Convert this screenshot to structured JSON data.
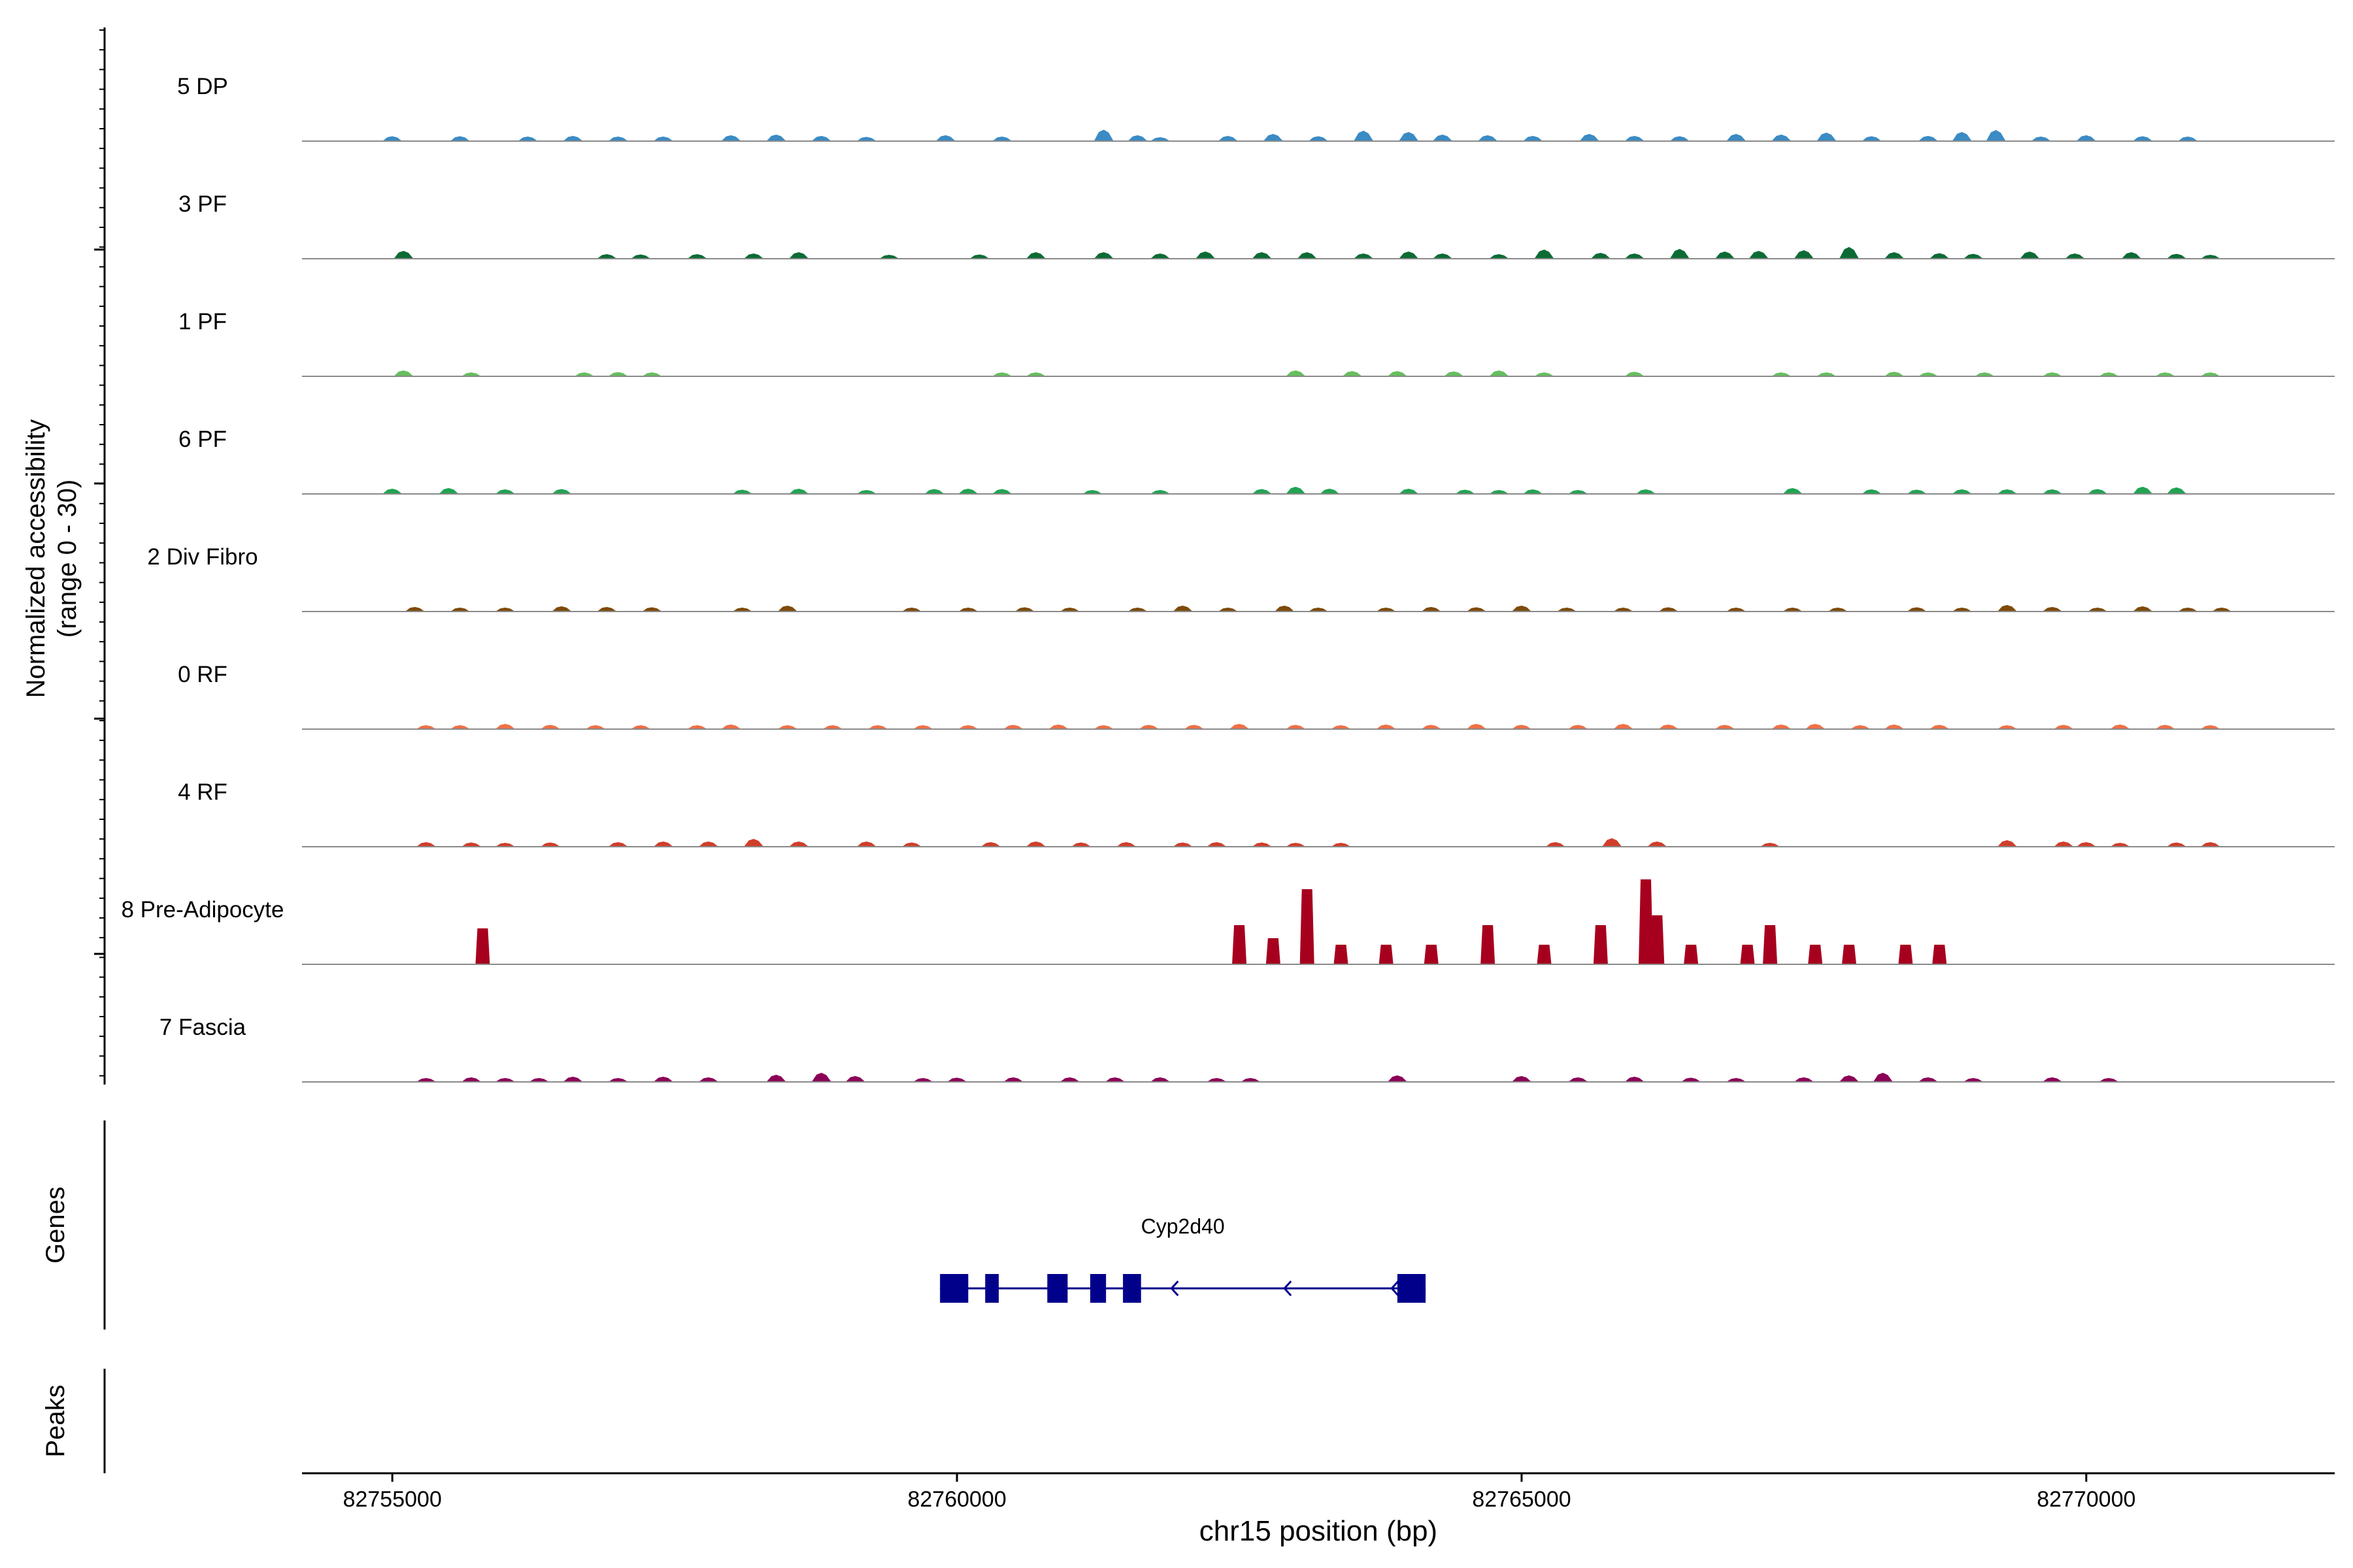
{
  "chart_data": {
    "type": "area",
    "title": "",
    "ylabel": [
      "Normalized accessibility",
      "(range 0 - 30)"
    ],
    "xlabel": "chr15 position (bp)",
    "xlim": [
      82754200,
      82772200
    ],
    "ylim": [
      0,
      30
    ],
    "xticks": [
      82755000,
      82760000,
      82765000,
      82770000
    ],
    "xtick_labels": [
      "82755000",
      "82760000",
      "82765000",
      "82770000"
    ],
    "tracks": [
      {
        "name": "5 DP",
        "color": "#3B8BC4",
        "peaks": [
          [
            82755000,
            1.5
          ],
          [
            82755600,
            1.5
          ],
          [
            82756200,
            1.4
          ],
          [
            82756600,
            1.6
          ],
          [
            82757000,
            1.4
          ],
          [
            82757400,
            1.4
          ],
          [
            82758000,
            1.8
          ],
          [
            82758400,
            2.0
          ],
          [
            82758800,
            1.6
          ],
          [
            82759200,
            1.3
          ],
          [
            82759900,
            1.8
          ],
          [
            82760400,
            1.4
          ],
          [
            82761300,
            3.5
          ],
          [
            82761600,
            1.8
          ],
          [
            82761800,
            1.2
          ],
          [
            82762400,
            1.6
          ],
          [
            82762800,
            2.2
          ],
          [
            82763200,
            1.5
          ],
          [
            82763600,
            3.2
          ],
          [
            82764000,
            2.8
          ],
          [
            82764300,
            2.0
          ],
          [
            82764700,
            1.8
          ],
          [
            82765100,
            1.6
          ],
          [
            82765600,
            2.2
          ],
          [
            82766000,
            1.6
          ],
          [
            82766400,
            1.5
          ],
          [
            82766900,
            2.2
          ],
          [
            82767300,
            2.0
          ],
          [
            82767700,
            2.6
          ],
          [
            82768100,
            1.5
          ],
          [
            82768600,
            1.6
          ],
          [
            82768900,
            2.8
          ],
          [
            82769200,
            3.4
          ],
          [
            82769600,
            1.4
          ],
          [
            82770000,
            1.8
          ],
          [
            82770500,
            1.5
          ],
          [
            82770900,
            1.4
          ]
        ]
      },
      {
        "name": "3 PF",
        "color": "#0C6B35",
        "peaks": [
          [
            82755100,
            2.4
          ],
          [
            82756900,
            1.4
          ],
          [
            82757200,
            1.3
          ],
          [
            82757700,
            1.4
          ],
          [
            82758200,
            1.6
          ],
          [
            82758600,
            2.0
          ],
          [
            82759400,
            1.2
          ],
          [
            82760200,
            1.3
          ],
          [
            82760700,
            2.0
          ],
          [
            82761300,
            2.0
          ],
          [
            82761800,
            1.6
          ],
          [
            82762200,
            2.2
          ],
          [
            82762700,
            2.0
          ],
          [
            82763100,
            2.0
          ],
          [
            82763600,
            1.6
          ],
          [
            82764000,
            2.2
          ],
          [
            82764300,
            1.6
          ],
          [
            82764800,
            1.4
          ],
          [
            82765200,
            2.8
          ],
          [
            82765700,
            1.8
          ],
          [
            82766000,
            1.6
          ],
          [
            82766400,
            3.0
          ],
          [
            82766800,
            2.2
          ],
          [
            82767100,
            2.4
          ],
          [
            82767500,
            2.6
          ],
          [
            82767900,
            3.6
          ],
          [
            82768300,
            2.0
          ],
          [
            82768700,
            1.7
          ],
          [
            82769000,
            1.5
          ],
          [
            82769500,
            2.2
          ],
          [
            82769900,
            1.6
          ],
          [
            82770400,
            2.0
          ],
          [
            82770800,
            1.5
          ],
          [
            82771100,
            1.2
          ]
        ]
      },
      {
        "name": "1 PF",
        "color": "#66BE5E",
        "peaks": [
          [
            82755100,
            1.8
          ],
          [
            82755700,
            1.2
          ],
          [
            82756700,
            1.2
          ],
          [
            82757000,
            1.3
          ],
          [
            82757300,
            1.2
          ],
          [
            82760400,
            1.2
          ],
          [
            82760700,
            1.2
          ],
          [
            82763000,
            1.8
          ],
          [
            82763500,
            1.6
          ],
          [
            82763900,
            1.6
          ],
          [
            82764400,
            1.5
          ],
          [
            82764800,
            1.8
          ],
          [
            82765200,
            1.2
          ],
          [
            82766000,
            1.4
          ],
          [
            82767300,
            1.2
          ],
          [
            82767700,
            1.2
          ],
          [
            82768300,
            1.4
          ],
          [
            82768600,
            1.2
          ],
          [
            82769100,
            1.2
          ],
          [
            82769700,
            1.2
          ],
          [
            82770200,
            1.2
          ],
          [
            82770700,
            1.2
          ],
          [
            82771100,
            1.2
          ]
        ]
      },
      {
        "name": "6 PF",
        "color": "#22A353",
        "peaks": [
          [
            82755000,
            1.6
          ],
          [
            82755500,
            1.8
          ],
          [
            82756000,
            1.4
          ],
          [
            82756500,
            1.5
          ],
          [
            82758100,
            1.3
          ],
          [
            82758600,
            1.6
          ],
          [
            82759200,
            1.2
          ],
          [
            82759800,
            1.5
          ],
          [
            82760100,
            1.6
          ],
          [
            82760400,
            1.5
          ],
          [
            82761200,
            1.2
          ],
          [
            82761800,
            1.2
          ],
          [
            82762700,
            1.5
          ],
          [
            82763000,
            2.2
          ],
          [
            82763300,
            1.6
          ],
          [
            82764000,
            1.6
          ],
          [
            82764500,
            1.3
          ],
          [
            82764800,
            1.2
          ],
          [
            82765100,
            1.4
          ],
          [
            82765500,
            1.2
          ],
          [
            82766100,
            1.4
          ],
          [
            82767400,
            1.8
          ],
          [
            82768100,
            1.4
          ],
          [
            82768500,
            1.3
          ],
          [
            82768900,
            1.4
          ],
          [
            82769300,
            1.4
          ],
          [
            82769700,
            1.4
          ],
          [
            82770100,
            1.5
          ],
          [
            82770500,
            2.2
          ],
          [
            82770800,
            2.0
          ]
        ]
      },
      {
        "name": "2 Div Fibro",
        "color": "#7F4A0A",
        "peaks": [
          [
            82755200,
            1.4
          ],
          [
            82755600,
            1.2
          ],
          [
            82756000,
            1.2
          ],
          [
            82756500,
            1.6
          ],
          [
            82756900,
            1.4
          ],
          [
            82757300,
            1.3
          ],
          [
            82758100,
            1.2
          ],
          [
            82758500,
            1.8
          ],
          [
            82759600,
            1.2
          ],
          [
            82760100,
            1.2
          ],
          [
            82760600,
            1.3
          ],
          [
            82761000,
            1.2
          ],
          [
            82761600,
            1.2
          ],
          [
            82762000,
            1.8
          ],
          [
            82762400,
            1.2
          ],
          [
            82762900,
            1.8
          ],
          [
            82763200,
            1.2
          ],
          [
            82763800,
            1.2
          ],
          [
            82764200,
            1.4
          ],
          [
            82764600,
            1.3
          ],
          [
            82765000,
            1.8
          ],
          [
            82765400,
            1.2
          ],
          [
            82765900,
            1.2
          ],
          [
            82766300,
            1.3
          ],
          [
            82766900,
            1.2
          ],
          [
            82767400,
            1.2
          ],
          [
            82767800,
            1.2
          ],
          [
            82768500,
            1.3
          ],
          [
            82768900,
            1.2
          ],
          [
            82769300,
            2.0
          ],
          [
            82769700,
            1.4
          ],
          [
            82770100,
            1.2
          ],
          [
            82770500,
            1.6
          ],
          [
            82770900,
            1.2
          ],
          [
            82771200,
            1.2
          ]
        ]
      },
      {
        "name": "0 RF",
        "color": "#EE7047",
        "peaks": [
          [
            82755300,
            1.2
          ],
          [
            82755600,
            1.2
          ],
          [
            82756000,
            1.6
          ],
          [
            82756400,
            1.3
          ],
          [
            82756800,
            1.2
          ],
          [
            82757200,
            1.2
          ],
          [
            82757700,
            1.2
          ],
          [
            82758000,
            1.4
          ],
          [
            82758500,
            1.2
          ],
          [
            82758900,
            1.2
          ],
          [
            82759300,
            1.2
          ],
          [
            82759700,
            1.2
          ],
          [
            82760100,
            1.2
          ],
          [
            82760500,
            1.3
          ],
          [
            82760900,
            1.4
          ],
          [
            82761300,
            1.2
          ],
          [
            82761700,
            1.3
          ],
          [
            82762100,
            1.3
          ],
          [
            82762500,
            1.6
          ],
          [
            82763000,
            1.3
          ],
          [
            82763400,
            1.2
          ],
          [
            82763800,
            1.4
          ],
          [
            82764200,
            1.3
          ],
          [
            82764600,
            1.6
          ],
          [
            82765000,
            1.3
          ],
          [
            82765500,
            1.3
          ],
          [
            82765900,
            1.6
          ],
          [
            82766300,
            1.4
          ],
          [
            82766800,
            1.3
          ],
          [
            82767300,
            1.4
          ],
          [
            82767600,
            1.6
          ],
          [
            82768000,
            1.2
          ],
          [
            82768300,
            1.4
          ],
          [
            82768700,
            1.3
          ],
          [
            82769300,
            1.2
          ],
          [
            82769800,
            1.3
          ],
          [
            82770300,
            1.4
          ],
          [
            82770700,
            1.3
          ],
          [
            82771100,
            1.2
          ]
        ]
      },
      {
        "name": "4 RF",
        "color": "#D03E2A",
        "peaks": [
          [
            82755300,
            1.4
          ],
          [
            82755700,
            1.3
          ],
          [
            82756000,
            1.2
          ],
          [
            82756400,
            1.3
          ],
          [
            82757000,
            1.4
          ],
          [
            82757400,
            1.6
          ],
          [
            82757800,
            1.6
          ],
          [
            82758200,
            2.4
          ],
          [
            82758600,
            1.6
          ],
          [
            82759200,
            1.6
          ],
          [
            82759600,
            1.3
          ],
          [
            82760300,
            1.4
          ],
          [
            82760700,
            1.6
          ],
          [
            82761100,
            1.3
          ],
          [
            82761500,
            1.4
          ],
          [
            82762000,
            1.3
          ],
          [
            82762300,
            1.4
          ],
          [
            82762700,
            1.3
          ],
          [
            82763000,
            1.2
          ],
          [
            82763400,
            1.2
          ],
          [
            82765300,
            1.4
          ],
          [
            82765800,
            2.6
          ],
          [
            82766200,
            1.6
          ],
          [
            82767200,
            1.2
          ],
          [
            82769300,
            2.0
          ],
          [
            82769800,
            1.6
          ],
          [
            82770000,
            1.4
          ],
          [
            82770300,
            1.2
          ],
          [
            82770800,
            1.3
          ],
          [
            82771100,
            1.4
          ]
        ]
      },
      {
        "name": "8 Pre-Adipocyte",
        "color": "#A7001F",
        "peaks": [
          [
            82755800,
            11
          ],
          [
            82762500,
            12
          ],
          [
            82762800,
            8
          ],
          [
            82763100,
            23
          ],
          [
            82763400,
            6
          ],
          [
            82763800,
            6
          ],
          [
            82764200,
            6
          ],
          [
            82764700,
            12
          ],
          [
            82765200,
            6
          ],
          [
            82765700,
            12
          ],
          [
            82766100,
            26
          ],
          [
            82766200,
            15
          ],
          [
            82766500,
            6
          ],
          [
            82767000,
            6
          ],
          [
            82767200,
            12
          ],
          [
            82767600,
            6
          ],
          [
            82767900,
            6
          ],
          [
            82768400,
            6
          ],
          [
            82768700,
            6
          ]
        ]
      },
      {
        "name": "7 Fascia",
        "color": "#8C0057",
        "peaks": [
          [
            82755300,
            1.2
          ],
          [
            82755700,
            1.4
          ],
          [
            82756000,
            1.2
          ],
          [
            82756300,
            1.2
          ],
          [
            82756600,
            1.6
          ],
          [
            82757000,
            1.2
          ],
          [
            82757400,
            1.6
          ],
          [
            82757800,
            1.4
          ],
          [
            82758400,
            2.2
          ],
          [
            82758800,
            2.8
          ],
          [
            82759100,
            1.8
          ],
          [
            82759700,
            1.2
          ],
          [
            82760000,
            1.3
          ],
          [
            82760500,
            1.4
          ],
          [
            82761000,
            1.4
          ],
          [
            82761400,
            1.4
          ],
          [
            82761800,
            1.4
          ],
          [
            82762300,
            1.2
          ],
          [
            82762600,
            1.2
          ],
          [
            82763900,
            2.0
          ],
          [
            82765000,
            1.8
          ],
          [
            82765500,
            1.4
          ],
          [
            82766000,
            1.6
          ],
          [
            82766500,
            1.3
          ],
          [
            82766900,
            1.2
          ],
          [
            82767500,
            1.4
          ],
          [
            82767900,
            2.0
          ],
          [
            82768200,
            2.8
          ],
          [
            82768600,
            1.4
          ],
          [
            82769000,
            1.2
          ],
          [
            82769700,
            1.4
          ],
          [
            82770200,
            1.2
          ]
        ]
      }
    ],
    "gene": {
      "name": "Cyp2d40",
      "color": "#00008B",
      "strand": "-",
      "start": 82759850,
      "end": 82764150,
      "exons": [
        [
          82759850,
          82760100
        ],
        [
          82760250,
          82760370
        ],
        [
          82760800,
          82760980
        ],
        [
          82761180,
          82761320
        ],
        [
          82761470,
          82761630
        ],
        [
          82763900,
          82764150
        ]
      ],
      "arrows": [
        82761900,
        82762900,
        82763850
      ]
    },
    "panels": {
      "genes_label": "Genes",
      "peaks_label": "Peaks"
    }
  }
}
